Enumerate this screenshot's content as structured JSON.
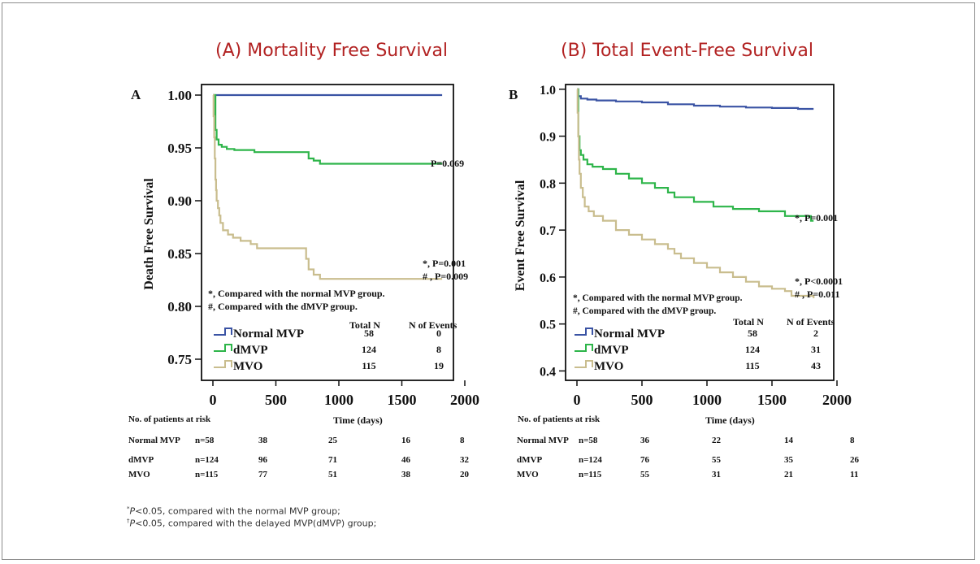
{
  "footnotes": [
    {
      "mark": "*",
      "pre": "",
      "italic": "P",
      "rest": "<0.05, compared with the normal MVP group;"
    },
    {
      "mark": "†",
      "pre": "",
      "italic": "P",
      "rest": "<0.05, compared with the delayed MVP(dMVP) group;"
    }
  ],
  "chart_data": [
    {
      "type": "line",
      "step": true,
      "panel_title": "(A) Mortality Free Survival",
      "panel_letter": "A",
      "ylabel": "Death Free Survival",
      "xlabel": "Time (days)",
      "xlim": [
        0,
        2000
      ],
      "ylim": [
        0.73,
        1.01
      ],
      "xticks": [
        0,
        500,
        1000,
        1500,
        2000
      ],
      "yticks": [
        0.75,
        0.8,
        0.85,
        0.9,
        0.95,
        1.0
      ],
      "ytick_labels": [
        "0.75",
        "0.80",
        "0.85",
        "0.90",
        "0.95",
        "1.00"
      ],
      "colors": {
        "Normal MVP": "#3a53a4",
        "dMVP": "#2eb54a",
        "MVO": "#c9bd8e"
      },
      "series": [
        {
          "name": "Normal MVP",
          "x": [
            0,
            1820
          ],
          "y": [
            1.0,
            1.0
          ]
        },
        {
          "name": "dMVP",
          "x": [
            0,
            20,
            30,
            45,
            70,
            110,
            170,
            330,
            600,
            760,
            800,
            850,
            1820
          ],
          "y": [
            1.0,
            0.967,
            0.958,
            0.953,
            0.951,
            0.949,
            0.948,
            0.946,
            0.946,
            0.94,
            0.938,
            0.935,
            0.935
          ]
        },
        {
          "name": "MVO",
          "x": [
            0,
            5,
            10,
            15,
            20,
            25,
            30,
            40,
            50,
            60,
            80,
            120,
            160,
            220,
            300,
            350,
            450,
            560,
            700,
            740,
            760,
            800,
            850,
            1820
          ],
          "y": [
            1.0,
            0.98,
            0.96,
            0.94,
            0.92,
            0.91,
            0.9,
            0.893,
            0.886,
            0.879,
            0.872,
            0.868,
            0.865,
            0.862,
            0.859,
            0.855,
            0.855,
            0.855,
            0.855,
            0.845,
            0.835,
            0.83,
            0.826,
            0.826
          ]
        }
      ],
      "annotations": {
        "p_dmvp": "P=0.069",
        "p_mvo_1": "*, P=0.001",
        "p_mvo_2": "# , P=0.009",
        "note_1": "*, Compared with the normal MVP group.",
        "note_2": "#, Compared with the dMVP group."
      },
      "legend": {
        "col_total": "Total N",
        "col_events": "N of Events",
        "rows": [
          {
            "name": "Normal MVP",
            "total": "58",
            "events": "0"
          },
          {
            "name": "dMVP",
            "total": "124",
            "events": "8"
          },
          {
            "name": "MVO",
            "total": "115",
            "events": "19"
          }
        ]
      },
      "risk_table": {
        "title": "No. of patients at risk",
        "rows": [
          {
            "label": "Normal MVP",
            "n": "n=58",
            "values": [
              "38",
              "25",
              "16",
              "8"
            ]
          },
          {
            "label": "dMVP",
            "n": "n=124",
            "values": [
              "96",
              "71",
              "46",
              "32"
            ]
          },
          {
            "label": "MVO",
            "n": "n=115",
            "values": [
              "77",
              "51",
              "38",
              "20"
            ]
          }
        ]
      }
    },
    {
      "type": "line",
      "step": true,
      "panel_title": "(B) Total Event-Free Survival",
      "panel_letter": "B",
      "ylabel": "Event Free Survival",
      "xlabel": "Time (days)",
      "xlim": [
        0,
        2000
      ],
      "ylim": [
        0.38,
        1.01
      ],
      "xticks": [
        0,
        500,
        1000,
        1500,
        2000
      ],
      "yticks": [
        0.4,
        0.5,
        0.6,
        0.7,
        0.8,
        0.9,
        1.0
      ],
      "ytick_labels": [
        "0.4",
        "0.5",
        "0.6",
        "0.7",
        "0.8",
        "0.9",
        "1.0"
      ],
      "colors": {
        "Normal MVP": "#3a53a4",
        "dMVP": "#2eb54a",
        "MVO": "#c9bd8e"
      },
      "series": [
        {
          "name": "Normal MVP",
          "x": [
            0,
            10,
            30,
            80,
            150,
            300,
            500,
            700,
            900,
            1100,
            1300,
            1500,
            1700,
            1820
          ],
          "y": [
            1.0,
            0.985,
            0.98,
            0.978,
            0.976,
            0.974,
            0.972,
            0.968,
            0.965,
            0.963,
            0.961,
            0.96,
            0.958,
            0.958
          ]
        },
        {
          "name": "dMVP",
          "x": [
            0,
            10,
            20,
            30,
            50,
            80,
            120,
            200,
            300,
            400,
            500,
            600,
            700,
            750,
            900,
            1050,
            1200,
            1400,
            1600,
            1650,
            1800,
            1820
          ],
          "y": [
            1.0,
            0.9,
            0.87,
            0.86,
            0.85,
            0.84,
            0.835,
            0.83,
            0.82,
            0.81,
            0.8,
            0.79,
            0.78,
            0.77,
            0.76,
            0.75,
            0.745,
            0.74,
            0.73,
            0.73,
            0.72,
            0.72
          ]
        },
        {
          "name": "MVO",
          "x": [
            0,
            5,
            10,
            15,
            20,
            30,
            45,
            60,
            90,
            130,
            200,
            300,
            400,
            500,
            600,
            700,
            750,
            800,
            900,
            1000,
            1100,
            1200,
            1300,
            1400,
            1500,
            1600,
            1650,
            1820
          ],
          "y": [
            1.0,
            0.95,
            0.9,
            0.85,
            0.82,
            0.79,
            0.77,
            0.75,
            0.74,
            0.73,
            0.72,
            0.7,
            0.69,
            0.68,
            0.67,
            0.66,
            0.65,
            0.64,
            0.63,
            0.62,
            0.61,
            0.6,
            0.59,
            0.58,
            0.575,
            0.57,
            0.56,
            0.555
          ]
        }
      ],
      "annotations": {
        "p_dmvp": "*, P=0.001",
        "p_mvo_1": "*, P<0.0001",
        "p_mvo_2": "# , P=0.011",
        "note_1": "*, Compared with the normal MVP group.",
        "note_2": "#, Compared with the dMVP group."
      },
      "legend": {
        "col_total": "Total N",
        "col_events": "N of Events",
        "rows": [
          {
            "name": "Normal MVP",
            "total": "58",
            "events": "2"
          },
          {
            "name": "dMVP",
            "total": "124",
            "events": "31"
          },
          {
            "name": "MVO",
            "total": "115",
            "events": "43"
          }
        ]
      },
      "risk_table": {
        "title": "No. of patients at risk",
        "rows": [
          {
            "label": "Normal MVP",
            "n": "n=58",
            "values": [
              "36",
              "22",
              "14",
              "8"
            ]
          },
          {
            "label": "dMVP",
            "n": "n=124",
            "values": [
              "76",
              "55",
              "35",
              "26"
            ]
          },
          {
            "label": "MVO",
            "n": "n=115",
            "values": [
              "55",
              "31",
              "21",
              "11"
            ]
          }
        ]
      }
    }
  ]
}
